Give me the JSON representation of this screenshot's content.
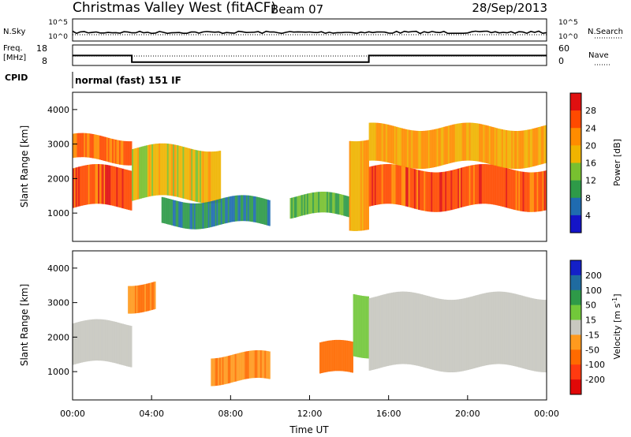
{
  "header": {
    "radar": "Christmas Valley West (fitACF)",
    "beam": "Beam 07",
    "date": "28/Sep/2013"
  },
  "noise_panel": {
    "left_label": "N.Sky",
    "right_label": "N.Search",
    "left_ticks": [
      "10^5",
      "10^0"
    ],
    "right_ticks": [
      "10^5",
      "10^0"
    ]
  },
  "freq_panel": {
    "left_label": "Freq.",
    "left_unit": "[MHz]",
    "right_label": "Nave",
    "left_ticks": [
      "18",
      "8"
    ],
    "right_ticks": [
      "60",
      "0"
    ]
  },
  "cpid": {
    "label": "CPID",
    "text": "normal (fast) 151 IF"
  },
  "range_axis": {
    "label": "Slant Range [km]",
    "ticks": [
      "1000",
      "2000",
      "3000",
      "4000"
    ]
  },
  "time_axis": {
    "label": "Time UT",
    "ticks": [
      "00:00",
      "04:00",
      "08:00",
      "12:00",
      "16:00",
      "20:00",
      "00:00"
    ]
  },
  "power_scale": {
    "label": "Power [dB]",
    "ticks": [
      "28",
      "24",
      "20",
      "16",
      "12",
      "8",
      "4"
    ],
    "colors": [
      "#e01010",
      "#ff4a00",
      "#ff8c00",
      "#f0b400",
      "#78c030",
      "#2e9a48",
      "#1f6bb0",
      "#1414c8"
    ]
  },
  "velocity_scale": {
    "label": "Velocity [m s",
    "label_sup": "-1",
    "label_end": "]",
    "ticks": [
      "200",
      "100",
      "50",
      "15",
      "-15",
      "-50",
      "-100",
      "-200"
    ],
    "colors": [
      "#1420c8",
      "#1f6ba0",
      "#2e9a48",
      "#72c83a",
      "#c8c8c0",
      "#ff9a1e",
      "#ff6a00",
      "#ff3a10",
      "#e00808"
    ]
  },
  "chart_data": {
    "type": "heatmap",
    "x_range_hours": [
      0,
      24
    ],
    "y_range_km": [
      180,
      4500
    ],
    "noise": {
      "n_sky_level": 1,
      "n_search_level": 1
    },
    "frequency_mhz": [
      {
        "from": 0,
        "to": 3,
        "value": 14
      },
      {
        "from": 3,
        "to": 15,
        "value": 10
      },
      {
        "from": 15,
        "to": 24,
        "value": 14
      }
    ],
    "power_echo_regions": [
      {
        "t0": 0,
        "t1": 3,
        "r0": 1150,
        "r1": 2300,
        "level": 28
      },
      {
        "t0": 0,
        "t1": 3,
        "r0": 2500,
        "r1": 3200,
        "level": 26
      },
      {
        "t0": 3,
        "t1": 7.5,
        "r0": 1400,
        "r1": 2900,
        "level": 20
      },
      {
        "t0": 4.5,
        "t1": 10,
        "r0": 650,
        "r1": 1400,
        "level": 10
      },
      {
        "t0": 11,
        "t1": 14,
        "r0": 900,
        "r1": 1500,
        "level": 14
      },
      {
        "t0": 14,
        "t1": 15,
        "r0": 600,
        "r1": 3200,
        "level": 22
      },
      {
        "t0": 15,
        "t1": 24,
        "r0": 1150,
        "r1": 2300,
        "level": 28
      },
      {
        "t0": 15,
        "t1": 24,
        "r0": 2400,
        "r1": 3500,
        "level": 22
      }
    ],
    "velocity_echo_regions": [
      {
        "t0": 0,
        "t1": 3,
        "r0": 1200,
        "r1": 2400,
        "velocity": 0
      },
      {
        "t0": 2.8,
        "t1": 4.2,
        "r0": 2800,
        "r1": 3600,
        "velocity": -50
      },
      {
        "t0": 7,
        "t1": 10,
        "r0": 700,
        "r1": 1500,
        "velocity": -50
      },
      {
        "t0": 12.5,
        "t1": 14.2,
        "r0": 900,
        "r1": 1800,
        "velocity": -70
      },
      {
        "t0": 14.2,
        "t1": 15,
        "r0": 1500,
        "r1": 3300,
        "velocity": 40
      },
      {
        "t0": 15,
        "t1": 24,
        "r0": 1100,
        "r1": 3200,
        "velocity": 0
      }
    ]
  }
}
